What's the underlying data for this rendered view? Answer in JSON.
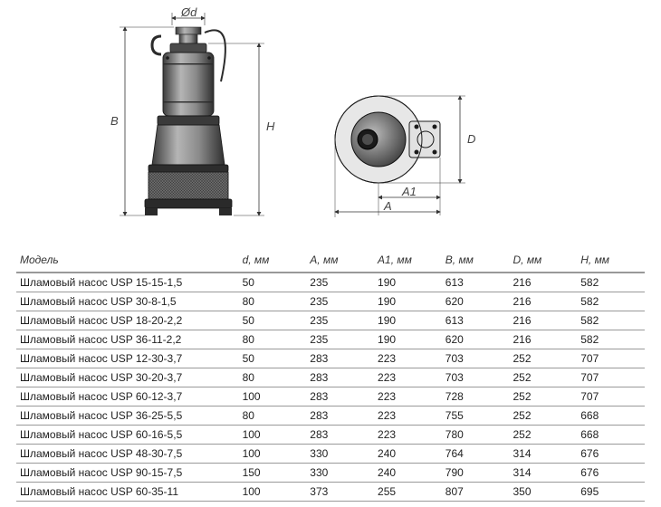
{
  "diagram": {
    "labels": {
      "Od": "Ød",
      "B": "B",
      "H": "H",
      "A1": "A1",
      "A": "A",
      "D": "D"
    },
    "colors": {
      "stroke": "#2b2b2b",
      "pump_fill": "#6f6f6f",
      "pump_dark": "#3c3c3c",
      "pump_light": "#b0b0b0",
      "mesh": "#555555",
      "background": "#ffffff",
      "dim_line": "#333333"
    },
    "stroke_width": 1.0,
    "arrow_size": 5
  },
  "table": {
    "columns": [
      "Модель",
      "d, мм",
      "A, мм",
      "A1, мм",
      "B, мм",
      "D, мм",
      "H, мм"
    ],
    "rows": [
      [
        "Шламовый насос USP 15-15-1,5",
        "50",
        "235",
        "190",
        "613",
        "216",
        "582"
      ],
      [
        "Шламовый насос USP 30-8-1,5",
        "80",
        "235",
        "190",
        "620",
        "216",
        "582"
      ],
      [
        "Шламовый насос USP 18-20-2,2",
        "50",
        "235",
        "190",
        "613",
        "216",
        "582"
      ],
      [
        "Шламовый насос USP 36-11-2,2",
        "80",
        "235",
        "190",
        "620",
        "216",
        "582"
      ],
      [
        "Шламовый насос USP 12-30-3,7",
        "50",
        "283",
        "223",
        "703",
        "252",
        "707"
      ],
      [
        "Шламовый насос USP 30-20-3,7",
        "80",
        "283",
        "223",
        "703",
        "252",
        "707"
      ],
      [
        "Шламовый насос USP 60-12-3,7",
        "100",
        "283",
        "223",
        "728",
        "252",
        "707"
      ],
      [
        "Шламовый насос USP 36-25-5,5",
        "80",
        "283",
        "223",
        "755",
        "252",
        "668"
      ],
      [
        "Шламовый насос USP 60-16-5,5",
        "100",
        "283",
        "223",
        "780",
        "252",
        "668"
      ],
      [
        "Шламовый насос USP 48-30-7,5",
        "100",
        "330",
        "240",
        "764",
        "314",
        "676"
      ],
      [
        "Шламовый насос USP 90-15-7,5",
        "150",
        "330",
        "240",
        "790",
        "314",
        "676"
      ],
      [
        "Шламовый насос USP 60-35-11",
        "100",
        "373",
        "255",
        "807",
        "350",
        "695"
      ]
    ],
    "header_border_color": "#999999",
    "row_border_color": "#999999",
    "font_size": 12,
    "font_color": "#222222"
  }
}
